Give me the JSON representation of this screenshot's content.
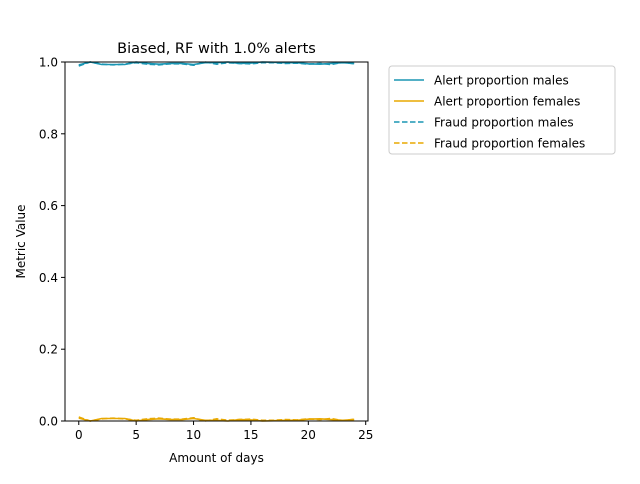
{
  "chart_data": {
    "type": "line",
    "title": "Biased, RF with 1.0% alerts",
    "xlabel": "Amount of days",
    "ylabel": "Metric Value",
    "xlim": [
      -1.2,
      25.2
    ],
    "ylim": [
      0,
      1.0
    ],
    "xticks": [
      0,
      5,
      10,
      15,
      20,
      25
    ],
    "yticks": [
      0.0,
      0.2,
      0.4,
      0.6,
      0.8,
      1.0
    ],
    "ytick_labels": [
      "0.0",
      "0.2",
      "0.4",
      "0.6",
      "0.8",
      "1.0"
    ],
    "grid": false,
    "legend_position": "outside-right-top",
    "x": [
      0,
      1,
      2,
      3,
      4,
      5,
      6,
      7,
      8,
      9,
      10,
      11,
      12,
      13,
      14,
      15,
      16,
      17,
      18,
      19,
      20,
      21,
      22,
      23,
      24
    ],
    "series": [
      {
        "name": "Alert proportion males",
        "color": "#1a96b4",
        "dash": "solid",
        "values": [
          0.992,
          1.0,
          0.993,
          0.993,
          0.993,
          1.0,
          0.996,
          0.994,
          0.996,
          0.996,
          0.993,
          0.998,
          0.998,
          1.0,
          0.996,
          0.997,
          1.0,
          0.999,
          0.998,
          0.998,
          0.995,
          0.994,
          0.996,
          0.998,
          0.996
        ]
      },
      {
        "name": "Alert proportion females",
        "color": "#e8a800",
        "dash": "solid",
        "values": [
          0.008,
          0.0,
          0.007,
          0.007,
          0.007,
          0.0,
          0.004,
          0.006,
          0.004,
          0.004,
          0.007,
          0.002,
          0.002,
          0.0,
          0.004,
          0.003,
          0.0,
          0.001,
          0.002,
          0.002,
          0.005,
          0.006,
          0.004,
          0.002,
          0.004
        ]
      },
      {
        "name": "Fraud proportion males",
        "color": "#1a96b4",
        "dash": "dashed",
        "values": [
          0.989,
          1.0,
          0.994,
          0.992,
          0.994,
          0.998,
          0.994,
          0.992,
          0.995,
          0.995,
          0.991,
          1.0,
          0.994,
          0.998,
          0.996,
          0.995,
          0.998,
          0.998,
          0.996,
          0.997,
          0.994,
          0.996,
          0.993,
          0.999,
          0.995
        ]
      },
      {
        "name": "Fraud proportion females",
        "color": "#e8a800",
        "dash": "dashed",
        "values": [
          0.011,
          0.0,
          0.006,
          0.008,
          0.006,
          0.002,
          0.006,
          0.008,
          0.005,
          0.005,
          0.009,
          0.0,
          0.006,
          0.002,
          0.004,
          0.005,
          0.002,
          0.002,
          0.004,
          0.003,
          0.006,
          0.004,
          0.007,
          0.001,
          0.005
        ]
      }
    ]
  }
}
